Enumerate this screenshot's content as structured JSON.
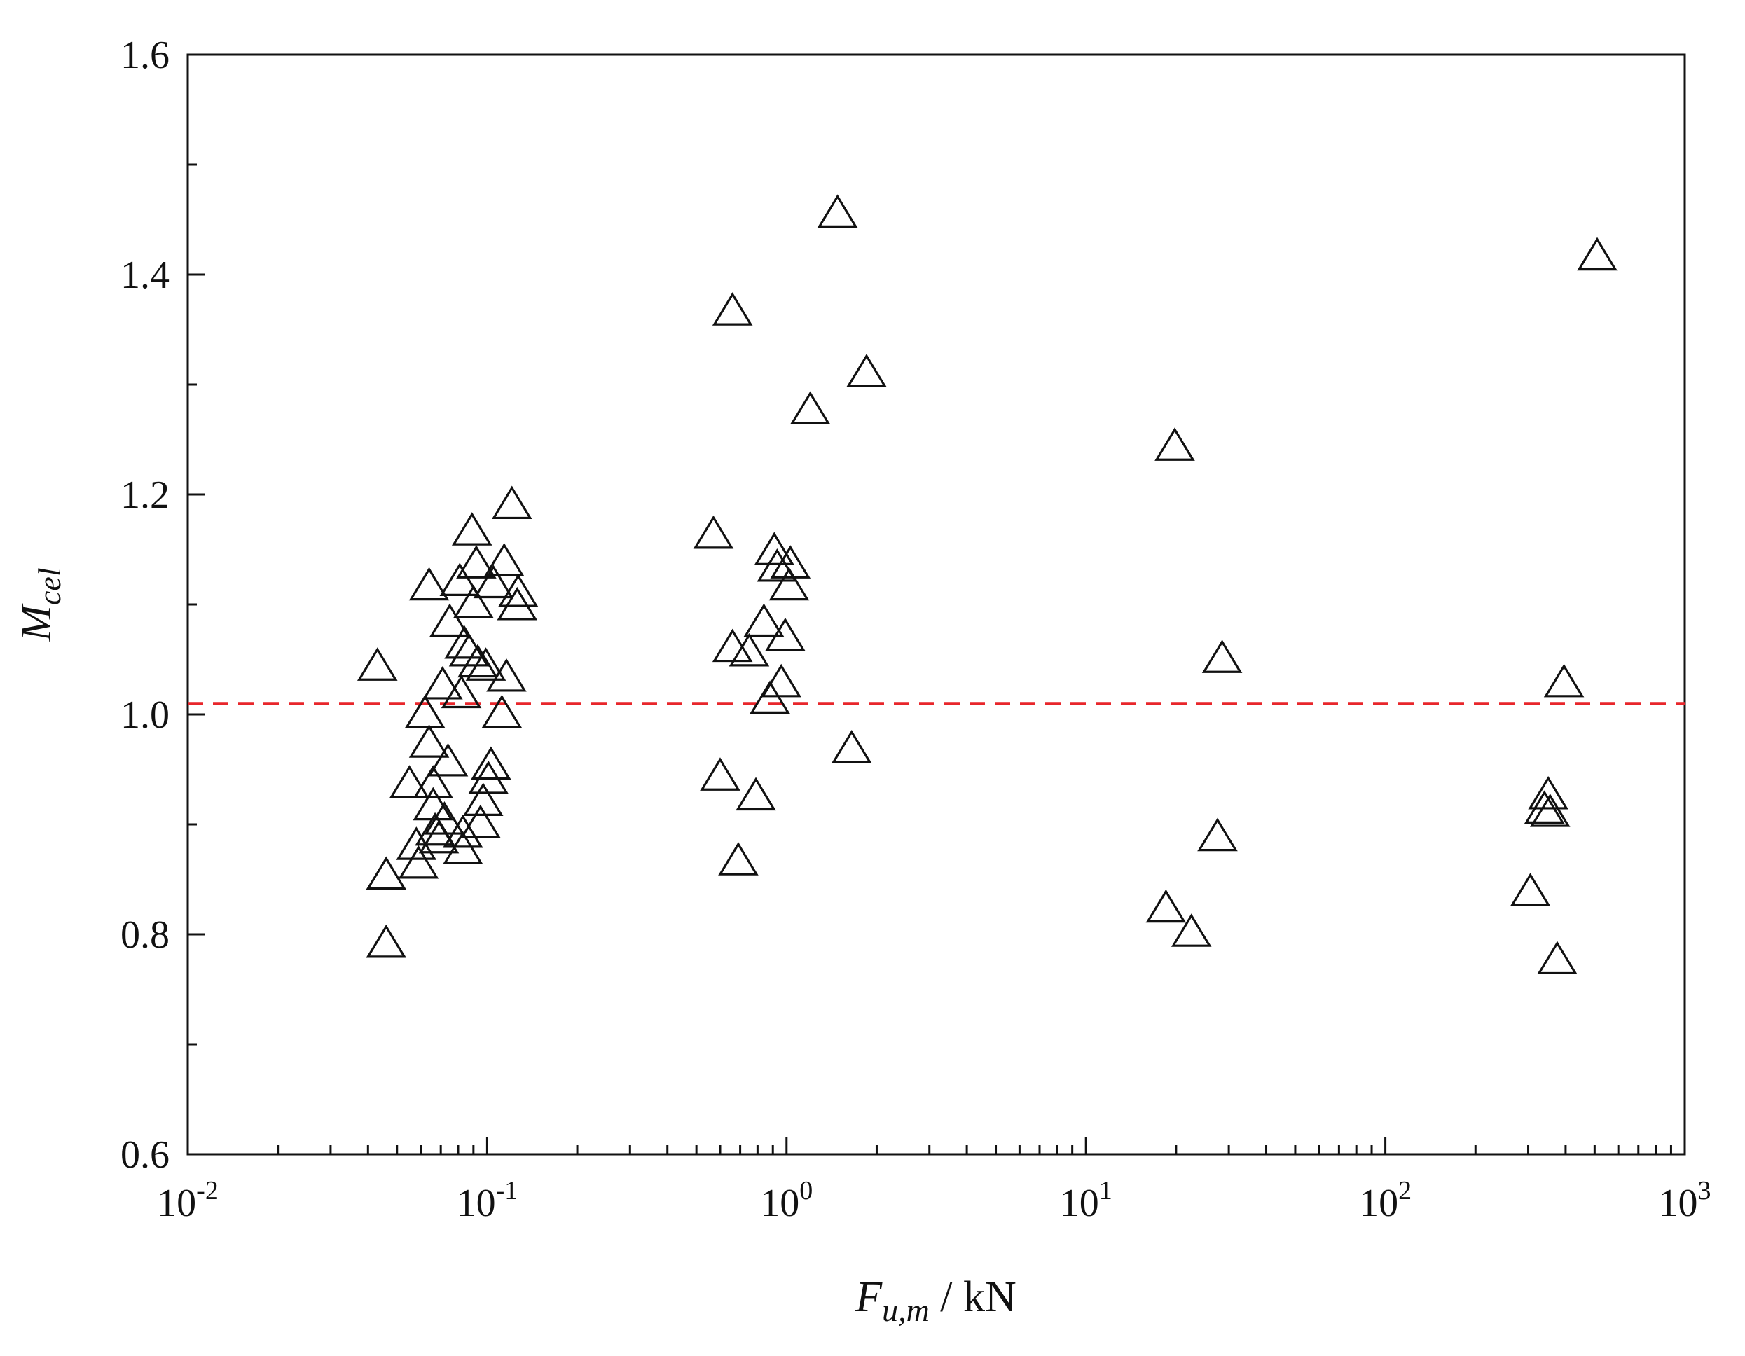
{
  "chart_data": {
    "type": "scatter",
    "title": "",
    "xlabel": {
      "main": "F",
      "sub": "u,m",
      "unit": " / kN"
    },
    "ylabel": {
      "main": "M",
      "sub": "cel"
    },
    "xscale": "log",
    "xlim": [
      0.01,
      1000
    ],
    "ylim": [
      0.6,
      1.6
    ],
    "x_ticks": [
      {
        "value": 0.01,
        "base": "10",
        "exp": "-2"
      },
      {
        "value": 0.1,
        "base": "10",
        "exp": "-1"
      },
      {
        "value": 1,
        "base": "10",
        "exp": "0"
      },
      {
        "value": 10,
        "base": "10",
        "exp": "1"
      },
      {
        "value": 100,
        "base": "10",
        "exp": "2"
      },
      {
        "value": 1000,
        "base": "10",
        "exp": "3"
      }
    ],
    "y_ticks": [
      "0.6",
      "0.8",
      "1.0",
      "1.2",
      "1.4",
      "1.6"
    ],
    "reference_line": {
      "y": 1.01,
      "style": "dashed",
      "color": "#e8262b"
    },
    "marker": {
      "shape": "open-triangle",
      "color": "#111111"
    },
    "grid": false,
    "legend": "none",
    "series": [
      {
        "points": [
          [
            0.043,
            1.045
          ],
          [
            0.046,
            0.855
          ],
          [
            0.046,
            0.793
          ],
          [
            0.055,
            0.938
          ],
          [
            0.058,
            0.882
          ],
          [
            0.059,
            0.865
          ],
          [
            0.062,
            1.002
          ],
          [
            0.064,
            1.118
          ],
          [
            0.064,
            0.975
          ],
          [
            0.066,
            0.938
          ],
          [
            0.066,
            0.918
          ],
          [
            0.067,
            0.895
          ],
          [
            0.069,
            0.888
          ],
          [
            0.071,
            1.028
          ],
          [
            0.072,
            0.905
          ],
          [
            0.074,
            0.958
          ],
          [
            0.075,
            1.085
          ],
          [
            0.081,
            1.122
          ],
          [
            0.082,
            1.02
          ],
          [
            0.083,
            0.878
          ],
          [
            0.083,
            0.893
          ],
          [
            0.084,
            1.065
          ],
          [
            0.087,
            1.058
          ],
          [
            0.089,
            1.168
          ],
          [
            0.09,
            1.102
          ],
          [
            0.092,
            1.138
          ],
          [
            0.093,
            1.048
          ],
          [
            0.095,
            0.902
          ],
          [
            0.097,
            0.922
          ],
          [
            0.099,
            1.045
          ],
          [
            0.101,
            0.942
          ],
          [
            0.103,
            0.955
          ],
          [
            0.105,
            1.12
          ],
          [
            0.112,
            1.002
          ],
          [
            0.114,
            1.14
          ],
          [
            0.116,
            1.035
          ],
          [
            0.121,
            1.192
          ],
          [
            0.126,
            1.1
          ],
          [
            0.127,
            1.112
          ],
          [
            0.57,
            1.165
          ],
          [
            0.6,
            0.945
          ],
          [
            0.66,
            1.062
          ],
          [
            0.66,
            1.368
          ],
          [
            0.69,
            0.868
          ],
          [
            0.75,
            1.058
          ],
          [
            0.79,
            0.927
          ],
          [
            0.84,
            1.085
          ],
          [
            0.88,
            1.015
          ],
          [
            0.91,
            1.15
          ],
          [
            0.93,
            1.135
          ],
          [
            0.96,
            1.03
          ],
          [
            0.99,
            1.072
          ],
          [
            1.02,
            1.118
          ],
          [
            1.03,
            1.138
          ],
          [
            1.2,
            1.278
          ],
          [
            1.48,
            1.457
          ],
          [
            1.65,
            0.97
          ],
          [
            1.85,
            1.312
          ],
          [
            18.5,
            0.825
          ],
          [
            19.8,
            1.245
          ],
          [
            22.5,
            0.803
          ],
          [
            27.5,
            0.89
          ],
          [
            28.5,
            1.052
          ],
          [
            305,
            0.84
          ],
          [
            340,
            0.915
          ],
          [
            350,
            0.928
          ],
          [
            355,
            0.912
          ],
          [
            375,
            0.778
          ],
          [
            395,
            1.03
          ],
          [
            510,
            1.418
          ]
        ]
      }
    ]
  }
}
